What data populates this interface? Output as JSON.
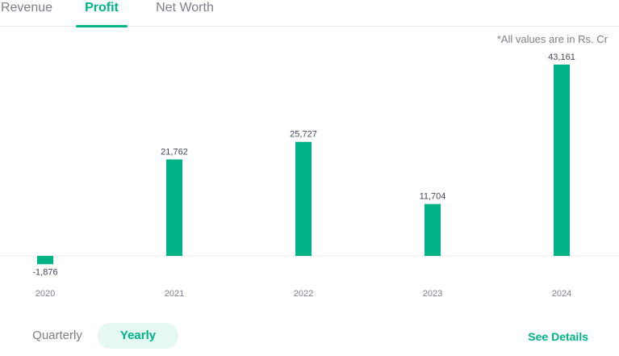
{
  "tabs": [
    {
      "label": "Revenue",
      "active": false
    },
    {
      "label": "Profit",
      "active": true
    },
    {
      "label": "Net Worth",
      "active": false
    }
  ],
  "note": "*All values are in Rs. Cr",
  "toggle": {
    "quarterly_label": "Quarterly",
    "yearly_label": "Yearly",
    "selected": "Yearly"
  },
  "see_details_label": "See Details",
  "colors": {
    "accent": "#00b386",
    "bar": "#00b386",
    "baseline": "#e9e9eb"
  },
  "chart_data": {
    "type": "bar",
    "title": "",
    "xlabel": "",
    "ylabel": "",
    "categories": [
      "2020",
      "2021",
      "2022",
      "2023",
      "2024"
    ],
    "values": [
      -1876,
      21762,
      25727,
      11704,
      43161
    ],
    "value_labels": [
      "-1,876",
      "21,762",
      "25,727",
      "11,704",
      "43,161"
    ],
    "ylim": [
      -1876,
      43161
    ],
    "grid": false,
    "legend": "none"
  }
}
